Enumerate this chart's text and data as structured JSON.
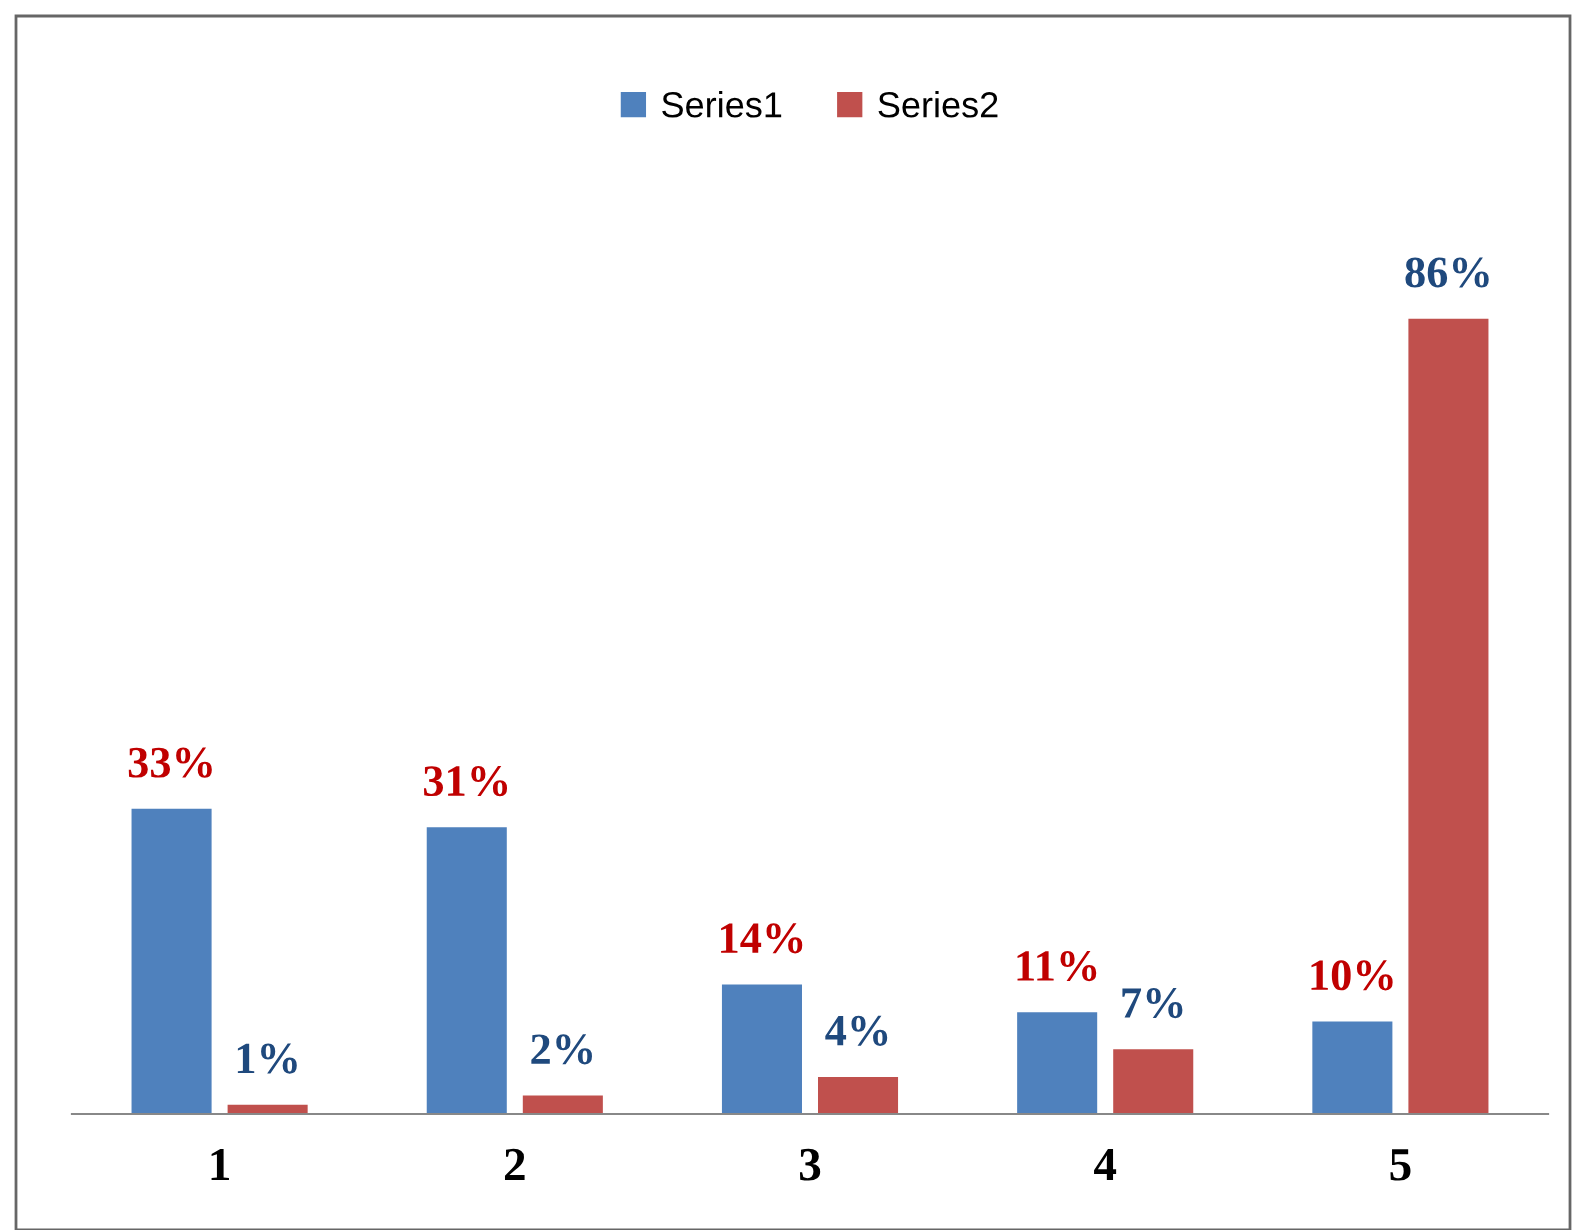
{
  "chart_data": {
    "type": "bar",
    "categories": [
      "1",
      "2",
      "3",
      "4",
      "5"
    ],
    "series": [
      {
        "name": "Series1",
        "color": "#4f81bd",
        "values": [
          33,
          31,
          14,
          11,
          10
        ],
        "value_labels": [
          "33%",
          "31%",
          "14%",
          "11%",
          "10%"
        ]
      },
      {
        "name": "Series2",
        "color": "#c0504d",
        "values": [
          1,
          2,
          4,
          7,
          86
        ],
        "value_labels": [
          "1%",
          "2%",
          "4%",
          "7%",
          "86%"
        ]
      }
    ],
    "legend": "top",
    "grid": false
  }
}
